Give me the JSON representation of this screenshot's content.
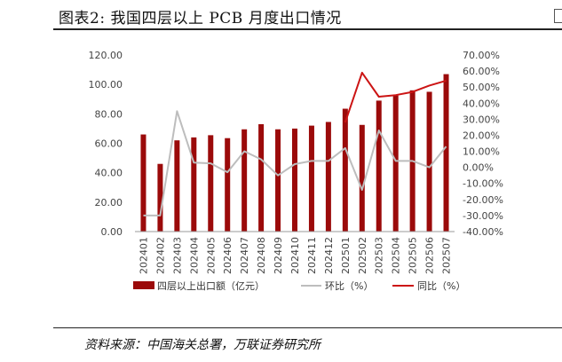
{
  "title": "图表2:  我国四层以上 PCB 月度出口情况",
  "source": "资料来源：中国海关总署，万联证券研究所",
  "colors": {
    "bar": "#9b0a0a",
    "mom": "#bdbdbd",
    "yoy": "#cc1414"
  },
  "chart_data": {
    "type": "bar",
    "categories": [
      "202401",
      "202402",
      "202403",
      "202404",
      "202405",
      "202406",
      "202407",
      "202408",
      "202409",
      "202410",
      "202411",
      "202412",
      "202501",
      "202502",
      "202503",
      "202504",
      "202505",
      "202506",
      "202507"
    ],
    "series": [
      {
        "name": "四层以上出口额（亿元）",
        "type": "bar",
        "axis": "left",
        "values": [
          66,
          46,
          62,
          64,
          65.5,
          63.5,
          69.5,
          73,
          69.5,
          70,
          72,
          74.5,
          83.5,
          72.5,
          89,
          92.5,
          96,
          95,
          107
        ]
      },
      {
        "name": "环比（%）",
        "type": "line",
        "axis": "right",
        "values": [
          -30,
          -30,
          35,
          3,
          2.5,
          -3,
          10,
          5,
          -5,
          2,
          4,
          4,
          12,
          -14,
          23,
          4,
          4,
          0,
          13
        ]
      },
      {
        "name": "同比（%）",
        "type": "line",
        "axis": "right",
        "values": [
          null,
          null,
          null,
          null,
          null,
          null,
          null,
          null,
          null,
          null,
          null,
          null,
          28,
          59,
          44,
          45,
          47,
          51,
          54
        ]
      }
    ],
    "y_left": {
      "min": 0,
      "max": 120,
      "step": 20,
      "ticks": [
        "0.00",
        "20.00",
        "40.00",
        "60.00",
        "80.00",
        "100.00",
        "120.00"
      ]
    },
    "y_right": {
      "min": -40,
      "max": 70,
      "step": 10,
      "ticks": [
        "-40.00%",
        "-30.00%",
        "-20.00%",
        "-10.00%",
        "0.00%",
        "10.00%",
        "20.00%",
        "30.00%",
        "40.00%",
        "50.00%",
        "60.00%",
        "70.00%"
      ]
    },
    "legend_position": "bottom",
    "grid": false
  }
}
